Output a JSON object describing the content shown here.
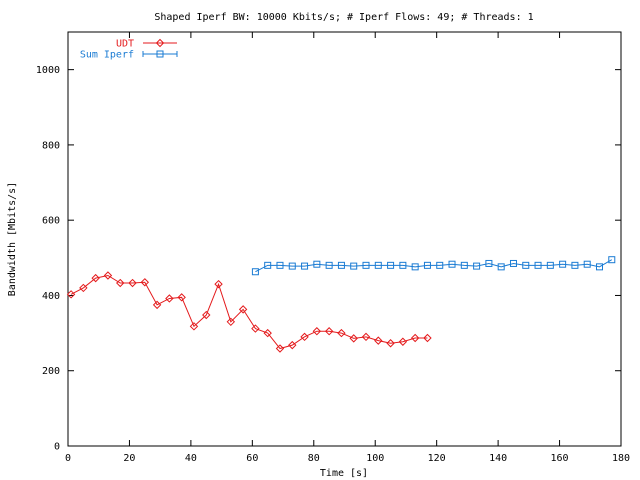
{
  "chart_data": {
    "type": "line",
    "title": "Shaped Iperf BW: 10000 Kbits/s; # Iperf Flows: 49; # Threads: 1",
    "xlabel": "Time [s]",
    "ylabel": "Bandwidth [Mbits/s]",
    "xlim": [
      0,
      180
    ],
    "ylim": [
      0,
      1100
    ],
    "xticks": [
      0,
      20,
      40,
      60,
      80,
      100,
      120,
      140,
      160,
      180
    ],
    "yticks": [
      0,
      200,
      400,
      600,
      800,
      1000
    ],
    "grid": false,
    "legend_position": "top-left",
    "series": [
      {
        "name": "UDT",
        "color": "#e41a1c",
        "marker": "diamond",
        "x": [
          1,
          5,
          9,
          13,
          17,
          21,
          25,
          29,
          33,
          37,
          41,
          45,
          49,
          53,
          57,
          61,
          65,
          69,
          73,
          77,
          81,
          85,
          89,
          93,
          97,
          101,
          105,
          109,
          113,
          117
        ],
        "y": [
          403,
          420,
          446,
          453,
          433,
          433,
          435,
          375,
          392,
          395,
          318,
          348,
          430,
          330,
          363,
          312,
          300,
          259,
          268,
          290,
          305,
          305,
          300,
          286,
          290,
          280,
          273,
          277,
          287,
          287
        ]
      },
      {
        "name": "Sum Iperf",
        "color": "#1a7bd3",
        "marker": "square",
        "x": [
          61,
          65,
          69,
          73,
          77,
          81,
          85,
          89,
          93,
          97,
          101,
          105,
          109,
          113,
          117,
          121,
          125,
          129,
          133,
          137,
          141,
          145,
          149,
          153,
          157,
          161,
          165,
          169,
          173,
          177
        ],
        "y": [
          463,
          480,
          480,
          478,
          478,
          483,
          480,
          480,
          478,
          480,
          480,
          480,
          480,
          476,
          480,
          480,
          483,
          480,
          478,
          485,
          476,
          485,
          480,
          480,
          480,
          483,
          480,
          483,
          476,
          495
        ]
      }
    ]
  }
}
